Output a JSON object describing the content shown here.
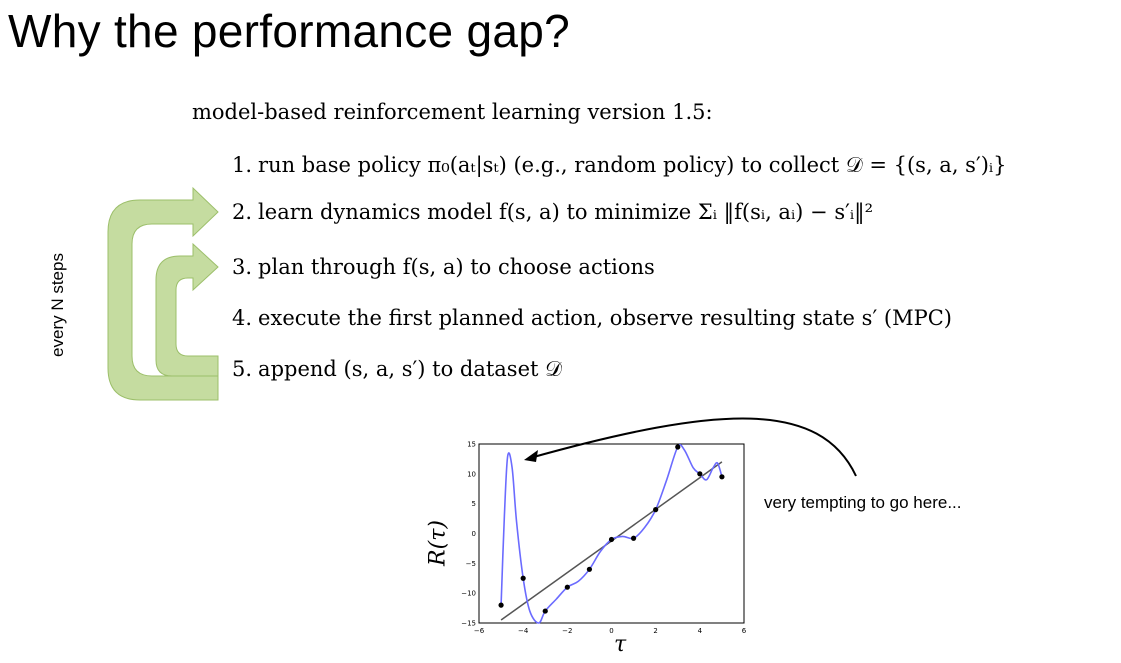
{
  "slide": {
    "title": "Why the performance gap?",
    "intro": "model-based reinforcement learning version 1.5:",
    "loop_label": "every N steps",
    "annotation": "very tempting to go here..."
  },
  "steps": [
    {
      "num": "1.",
      "text": "run base policy π₀(aₜ|sₜ) (e.g., random policy) to collect 𝒟 = {(s, a, s′)ᵢ}"
    },
    {
      "num": "2.",
      "text": "learn dynamics model f(s, a) to minimize Σᵢ ‖f(sᵢ, aᵢ) − s′ᵢ‖²"
    },
    {
      "num": "3.",
      "text": "plan through f(s, a) to choose actions"
    },
    {
      "num": "4.",
      "text": "execute the first planned action, observe resulting state s′ (MPC)"
    },
    {
      "num": "5.",
      "text": "append (s, a, s′) to dataset 𝒟"
    }
  ],
  "colors": {
    "arrow_fill": "#c5dca0",
    "arrow_edge": "#9cbf6a",
    "curve": "#6b6bff",
    "fit_line": "#555555",
    "points": "#000000"
  },
  "chart_data": {
    "type": "scatter",
    "xlabel": "τ",
    "ylabel": "R(τ)",
    "xlim": [
      -6,
      6
    ],
    "ylim": [
      -15,
      15
    ],
    "xticks": [
      -6,
      -4,
      -2,
      0,
      2,
      4,
      6
    ],
    "yticks": [
      15,
      10,
      5,
      0,
      -5,
      -10,
      -15
    ],
    "grid": false,
    "series": [
      {
        "kind": "points",
        "x": [
          -5,
          -4,
          -3,
          -2,
          -1,
          0,
          1,
          2,
          3,
          4,
          5
        ],
        "y": [
          -12,
          -7.5,
          -13,
          -9,
          -6,
          -1,
          -0.8,
          4,
          14.5,
          10,
          9.5
        ]
      },
      {
        "kind": "fit_line",
        "x": [
          -5,
          5
        ],
        "y": [
          -14.5,
          12
        ]
      },
      {
        "kind": "overfit_curve",
        "x": [
          -5,
          -4.85,
          -4.7,
          -4.5,
          -4.3,
          -4,
          -3.7,
          -3.3,
          -3,
          -2.5,
          -2,
          -1.5,
          -1,
          -0.5,
          0,
          0.5,
          1,
          1.5,
          2,
          2.5,
          3,
          3.3,
          3.7,
          4,
          4.3,
          4.6,
          4.8,
          5
        ],
        "y": [
          -12,
          3,
          13,
          11,
          2,
          -7.5,
          -13,
          -15,
          -13,
          -11,
          -9,
          -8,
          -6,
          -3,
          -1,
          -0.5,
          -0.8,
          1,
          4,
          9,
          14.5,
          14,
          11,
          10,
          9,
          11,
          11.8,
          9.5
        ]
      }
    ]
  }
}
